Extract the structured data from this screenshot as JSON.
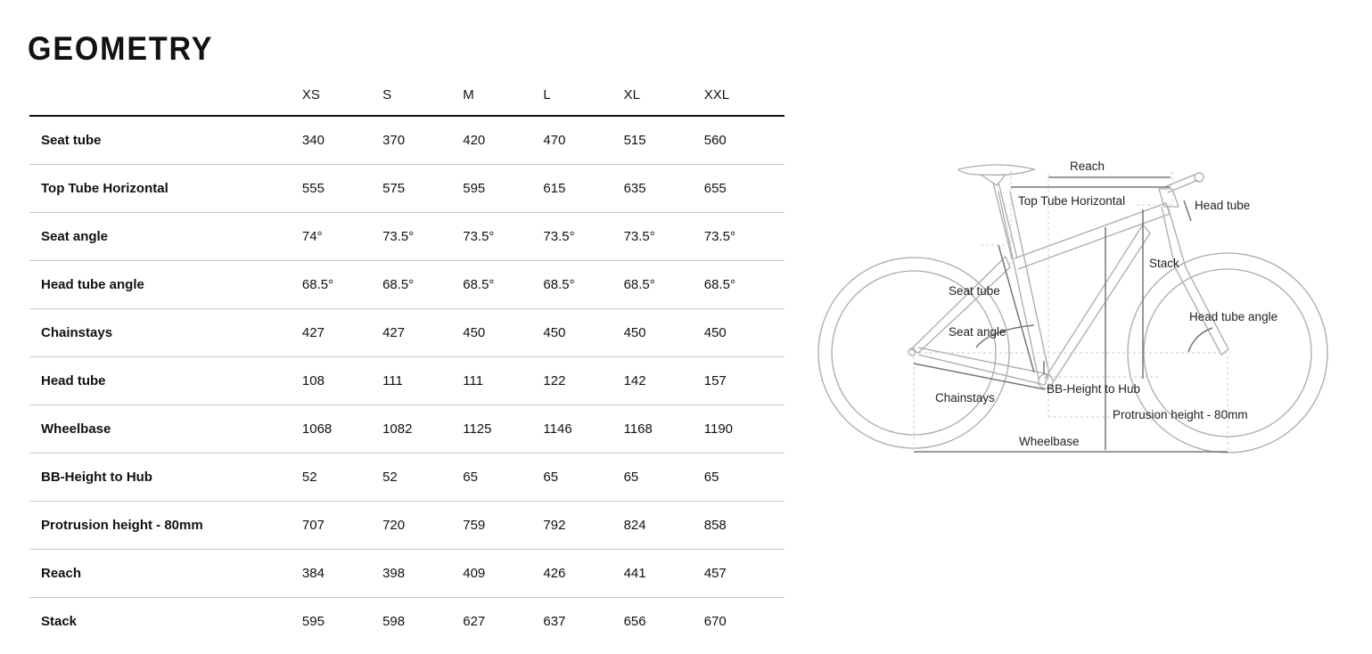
{
  "title": "GEOMETRY",
  "table": {
    "columns": [
      "XS",
      "S",
      "M",
      "L",
      "XL",
      "XXL"
    ],
    "rows": [
      {
        "label": "Seat tube",
        "values": [
          "340",
          "370",
          "420",
          "470",
          "515",
          "560"
        ]
      },
      {
        "label": "Top Tube Horizontal",
        "values": [
          "555",
          "575",
          "595",
          "615",
          "635",
          "655"
        ]
      },
      {
        "label": "Seat angle",
        "values": [
          "74°",
          "73.5°",
          "73.5°",
          "73.5°",
          "73.5°",
          "73.5°"
        ]
      },
      {
        "label": "Head tube angle",
        "values": [
          "68.5°",
          "68.5°",
          "68.5°",
          "68.5°",
          "68.5°",
          "68.5°"
        ]
      },
      {
        "label": "Chainstays",
        "values": [
          "427",
          "427",
          "450",
          "450",
          "450",
          "450"
        ]
      },
      {
        "label": "Head tube",
        "values": [
          "108",
          "111",
          "111",
          "122",
          "142",
          "157"
        ]
      },
      {
        "label": "Wheelbase",
        "values": [
          "1068",
          "1082",
          "1125",
          "1146",
          "1168",
          "1190"
        ]
      },
      {
        "label": "BB-Height to Hub",
        "values": [
          "52",
          "52",
          "65",
          "65",
          "65",
          "65"
        ]
      },
      {
        "label": "Protrusion height - 80mm",
        "values": [
          "707",
          "720",
          "759",
          "792",
          "824",
          "858"
        ]
      },
      {
        "label": "Reach",
        "values": [
          "384",
          "398",
          "409",
          "426",
          "441",
          "457"
        ]
      },
      {
        "label": "Stack",
        "values": [
          "595",
          "598",
          "627",
          "637",
          "656",
          "670"
        ]
      }
    ]
  },
  "diagram": {
    "labels": {
      "reach": "Reach",
      "top_tube": "Top Tube Horizontal",
      "head_tube": "Head tube",
      "stack": "Stack",
      "seat_tube": "Seat tube",
      "head_tube_angle": "Head tube angle",
      "seat_angle": "Seat angle",
      "bb_height": "BB-Height to Hub",
      "chainstays": "Chainstays",
      "protrusion": "Protrusion height - 80mm",
      "wheelbase": "Wheelbase"
    }
  }
}
